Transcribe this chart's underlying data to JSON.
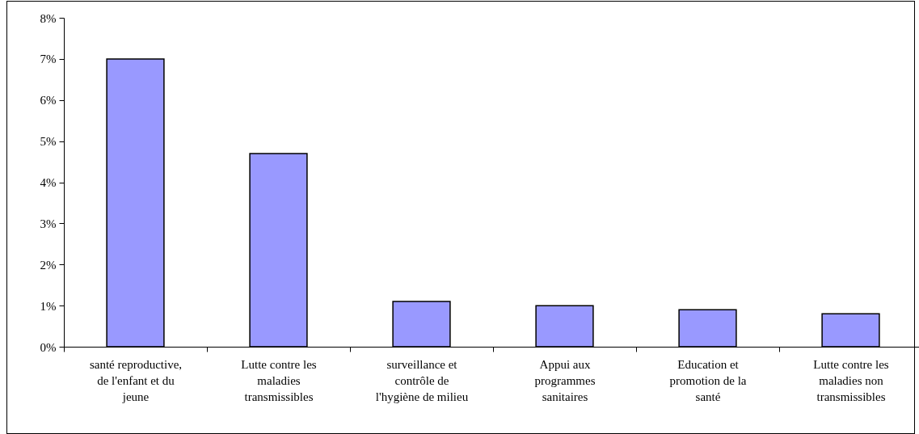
{
  "chart_data": {
    "type": "bar",
    "categories": [
      "santé reproductive, de l'enfant et du jeune",
      "Lutte contre les maladies transmissibles",
      "surveillance et contrôle de l'hygiène de milieu",
      "Appui aux programmes sanitaires",
      "Education et promotion de la santé",
      "Lutte contre les maladies non transmissibles"
    ],
    "values": [
      7.0,
      4.7,
      1.1,
      1.0,
      0.9,
      0.8
    ],
    "color": "#9999ff",
    "ylim": [
      0,
      8
    ],
    "yticks": [
      {
        "value": 0,
        "label": "0%"
      },
      {
        "value": 1,
        "label": "1%"
      },
      {
        "value": 2,
        "label": "2%"
      },
      {
        "value": 3,
        "label": "3%"
      },
      {
        "value": 4,
        "label": "4%"
      },
      {
        "value": 5,
        "label": "5%"
      },
      {
        "value": 6,
        "label": "6%"
      },
      {
        "value": 7,
        "label": "7%"
      },
      {
        "value": 8,
        "label": "8%"
      }
    ],
    "grid": false
  }
}
